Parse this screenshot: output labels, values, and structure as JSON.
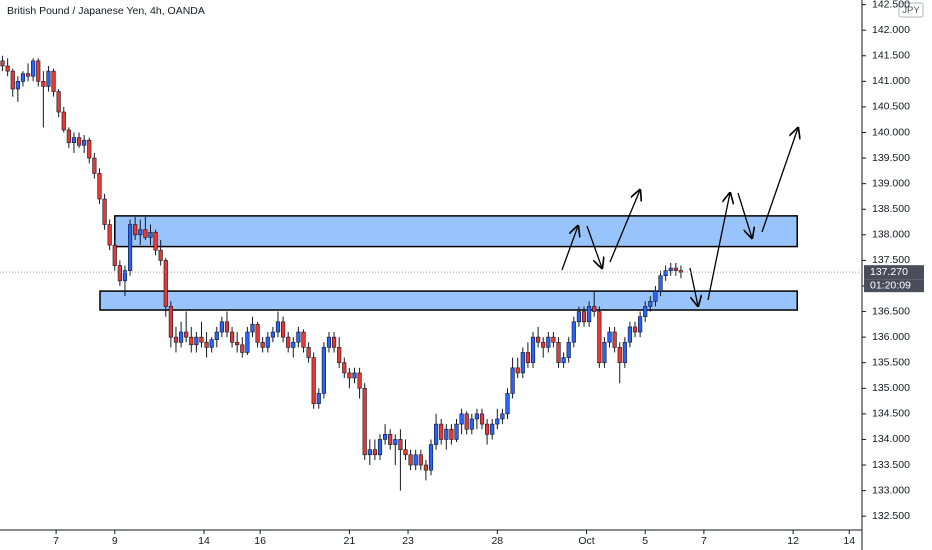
{
  "chart_data": {
    "type": "candlestick",
    "title": "British Pound / Japanese Yen, 4h, OANDA",
    "currency": "JPY",
    "up_color": "#2962ff",
    "down_color": "#e53935",
    "zone_color": "#99c4fb",
    "xlim": [
      0,
      169
    ],
    "ylim": [
      132.23,
      142.59
    ],
    "xticks": [
      {
        "value": 11,
        "label": "7"
      },
      {
        "value": 22.5,
        "label": "9"
      },
      {
        "value": 40,
        "label": "14"
      },
      {
        "value": 51,
        "label": "16"
      },
      {
        "value": 68.5,
        "label": "21"
      },
      {
        "value": 80,
        "label": "23"
      },
      {
        "value": 97.5,
        "label": "28"
      },
      {
        "value": 115,
        "label": "Oct"
      },
      {
        "value": 126.5,
        "label": "5"
      },
      {
        "value": 138,
        "label": "7"
      },
      {
        "value": 155.5,
        "label": "12"
      },
      {
        "value": 166.5,
        "label": "14"
      }
    ],
    "yticks": [
      {
        "value": 132.5,
        "label": "132.500"
      },
      {
        "value": 133,
        "label": "133.000"
      },
      {
        "value": 133.5,
        "label": "133.500"
      },
      {
        "value": 134,
        "label": "134.000"
      },
      {
        "value": 134.5,
        "label": "134.500"
      },
      {
        "value": 135,
        "label": "135.000"
      },
      {
        "value": 135.5,
        "label": "135.500"
      },
      {
        "value": 136,
        "label": "136.000"
      },
      {
        "value": 136.5,
        "label": "136.500"
      },
      {
        "value": 137,
        "label": "137.000"
      },
      {
        "value": 137.5,
        "label": "137.500"
      },
      {
        "value": 138,
        "label": "138.000"
      },
      {
        "value": 138.5,
        "label": "138.500"
      },
      {
        "value": 139,
        "label": "139.000"
      },
      {
        "value": 139.5,
        "label": "139.500"
      },
      {
        "value": 140,
        "label": "140.000"
      },
      {
        "value": 140.5,
        "label": "140.500"
      },
      {
        "value": 141,
        "label": "141.000"
      },
      {
        "value": 141.5,
        "label": "141.500"
      },
      {
        "value": 142,
        "label": "142.000"
      },
      {
        "value": 142.5,
        "label": "142.500"
      }
    ],
    "last_price": {
      "value": 137.27,
      "label": "137.270"
    },
    "countdown": "01:20:09",
    "zones": [
      {
        "top": 138.37,
        "bottom": 137.77,
        "from": 22.5,
        "to": 156.3
      },
      {
        "top": 136.9,
        "bottom": 136.53,
        "from": 19.6,
        "to": 156.3
      }
    ],
    "ohlc": [
      [
        141.4,
        141.5,
        141.2,
        141.3
      ],
      [
        141.3,
        141.45,
        141.1,
        141.2
      ],
      [
        141.2,
        141.25,
        140.7,
        140.85
      ],
      [
        140.85,
        141.1,
        140.6,
        141.0
      ],
      [
        141.0,
        141.2,
        140.9,
        141.15
      ],
      [
        141.15,
        141.35,
        141.0,
        141.1
      ],
      [
        141.1,
        141.45,
        141.0,
        141.4
      ],
      [
        141.4,
        141.45,
        140.9,
        141.0
      ],
      [
        141.0,
        141.2,
        140.1,
        140.9
      ],
      [
        140.9,
        141.3,
        140.8,
        141.2
      ],
      [
        141.2,
        141.25,
        140.7,
        140.8
      ],
      [
        140.8,
        140.85,
        140.3,
        140.4
      ],
      [
        140.4,
        140.5,
        140.0,
        140.05
      ],
      [
        140.05,
        140.1,
        139.7,
        139.8
      ],
      [
        139.8,
        140.0,
        139.6,
        139.9
      ],
      [
        139.9,
        140.0,
        139.7,
        139.75
      ],
      [
        139.75,
        139.95,
        139.6,
        139.85
      ],
      [
        139.85,
        139.9,
        139.4,
        139.5
      ],
      [
        139.5,
        139.6,
        139.1,
        139.2
      ],
      [
        139.2,
        139.3,
        138.6,
        138.7
      ],
      [
        138.7,
        138.8,
        138.1,
        138.2
      ],
      [
        138.2,
        138.3,
        137.7,
        137.8
      ],
      [
        137.8,
        137.9,
        137.3,
        137.4
      ],
      [
        137.4,
        137.5,
        137.0,
        137.1
      ],
      [
        137.1,
        137.4,
        136.8,
        137.3
      ],
      [
        137.3,
        138.3,
        137.2,
        138.2
      ],
      [
        138.2,
        138.35,
        137.9,
        138.0
      ],
      [
        138.0,
        138.3,
        137.8,
        138.1
      ],
      [
        138.1,
        138.35,
        137.9,
        137.95
      ],
      [
        137.95,
        138.2,
        137.8,
        138.05
      ],
      [
        138.05,
        138.1,
        137.6,
        137.7
      ],
      [
        137.7,
        137.9,
        137.4,
        137.5
      ],
      [
        137.5,
        137.55,
        136.4,
        136.6
      ],
      [
        136.6,
        136.7,
        135.8,
        136.0
      ],
      [
        136.0,
        136.2,
        135.7,
        135.9
      ],
      [
        135.9,
        136.3,
        135.8,
        136.1
      ],
      [
        136.1,
        136.5,
        135.9,
        136.0
      ],
      [
        136.0,
        136.2,
        135.7,
        135.85
      ],
      [
        135.85,
        136.1,
        135.7,
        136.0
      ],
      [
        136.0,
        136.3,
        135.8,
        135.9
      ],
      [
        135.9,
        136.1,
        135.6,
        135.8
      ],
      [
        135.8,
        136.0,
        135.7,
        135.95
      ],
      [
        135.95,
        136.2,
        135.8,
        136.1
      ],
      [
        136.1,
        136.4,
        136.0,
        136.3
      ],
      [
        136.3,
        136.5,
        136.0,
        136.1
      ],
      [
        136.1,
        136.2,
        135.8,
        135.9
      ],
      [
        135.9,
        136.1,
        135.7,
        135.85
      ],
      [
        135.85,
        136.0,
        135.6,
        135.7
      ],
      [
        135.7,
        136.2,
        135.65,
        136.1
      ],
      [
        136.1,
        136.4,
        136.0,
        136.25
      ],
      [
        136.25,
        136.3,
        135.8,
        135.9
      ],
      [
        135.9,
        136.0,
        135.7,
        135.8
      ],
      [
        135.8,
        136.1,
        135.7,
        136.0
      ],
      [
        136.0,
        136.2,
        135.9,
        136.1
      ],
      [
        136.1,
        136.5,
        136.0,
        136.3
      ],
      [
        136.3,
        136.4,
        135.9,
        136.0
      ],
      [
        136.0,
        136.1,
        135.7,
        135.8
      ],
      [
        135.8,
        136.0,
        135.6,
        135.9
      ],
      [
        135.9,
        136.2,
        135.8,
        136.1
      ],
      [
        136.1,
        136.15,
        135.7,
        135.8
      ],
      [
        135.8,
        135.9,
        135.5,
        135.6
      ],
      [
        135.6,
        135.7,
        134.6,
        134.7
      ],
      [
        134.7,
        135.0,
        134.6,
        134.9
      ],
      [
        134.9,
        135.9,
        134.8,
        135.8
      ],
      [
        135.8,
        136.1,
        135.7,
        136.0
      ],
      [
        136.0,
        136.1,
        135.7,
        135.8
      ],
      [
        135.8,
        136.0,
        135.4,
        135.5
      ],
      [
        135.5,
        135.6,
        135.2,
        135.3
      ],
      [
        135.3,
        135.4,
        135.0,
        135.2
      ],
      [
        135.2,
        135.4,
        135.1,
        135.3
      ],
      [
        135.3,
        135.4,
        134.8,
        135.0
      ],
      [
        135.0,
        135.1,
        133.6,
        133.7
      ],
      [
        133.7,
        134.0,
        133.5,
        133.8
      ],
      [
        133.8,
        134.0,
        133.6,
        133.7
      ],
      [
        133.7,
        134.1,
        133.6,
        134.0
      ],
      [
        134.0,
        134.3,
        133.9,
        134.1
      ],
      [
        134.1,
        134.2,
        133.8,
        133.9
      ],
      [
        133.9,
        134.1,
        133.5,
        134.0
      ],
      [
        134.0,
        134.2,
        133.0,
        133.8
      ],
      [
        133.8,
        134.0,
        133.6,
        133.7
      ],
      [
        133.7,
        133.8,
        133.4,
        133.5
      ],
      [
        133.5,
        133.8,
        133.4,
        133.7
      ],
      [
        133.7,
        133.8,
        133.4,
        133.5
      ],
      [
        133.5,
        133.6,
        133.2,
        133.4
      ],
      [
        133.4,
        134.0,
        133.3,
        133.9
      ],
      [
        133.9,
        134.5,
        133.8,
        134.3
      ],
      [
        134.3,
        134.4,
        133.9,
        134.0
      ],
      [
        134.0,
        134.3,
        133.8,
        134.2
      ],
      [
        134.2,
        134.3,
        133.9,
        134.0
      ],
      [
        134.0,
        134.4,
        133.95,
        134.3
      ],
      [
        134.3,
        134.6,
        134.1,
        134.5
      ],
      [
        134.5,
        134.55,
        134.1,
        134.2
      ],
      [
        134.2,
        134.5,
        134.1,
        134.4
      ],
      [
        134.4,
        134.6,
        134.2,
        134.5
      ],
      [
        134.5,
        134.6,
        134.2,
        134.3
      ],
      [
        134.3,
        134.4,
        133.9,
        134.1
      ],
      [
        134.1,
        134.4,
        134.0,
        134.3
      ],
      [
        134.3,
        134.6,
        134.2,
        134.4
      ],
      [
        134.4,
        134.6,
        134.3,
        134.5
      ],
      [
        134.5,
        135.0,
        134.4,
        134.9
      ],
      [
        134.9,
        135.6,
        134.8,
        135.4
      ],
      [
        135.4,
        135.6,
        135.2,
        135.3
      ],
      [
        135.3,
        135.8,
        135.2,
        135.7
      ],
      [
        135.7,
        135.9,
        135.4,
        135.5
      ],
      [
        135.5,
        136.1,
        135.4,
        136.0
      ],
      [
        136.0,
        136.2,
        135.8,
        135.9
      ],
      [
        135.9,
        136.0,
        135.6,
        135.8
      ],
      [
        135.8,
        136.1,
        135.7,
        136.0
      ],
      [
        136.0,
        136.1,
        135.8,
        135.9
      ],
      [
        135.9,
        136.0,
        135.4,
        135.5
      ],
      [
        135.5,
        135.7,
        135.4,
        135.6
      ],
      [
        135.6,
        136.0,
        135.5,
        135.9
      ],
      [
        135.9,
        136.4,
        135.8,
        136.3
      ],
      [
        136.3,
        136.6,
        136.2,
        136.5
      ],
      [
        136.5,
        136.6,
        136.2,
        136.3
      ],
      [
        136.3,
        136.7,
        136.2,
        136.6
      ],
      [
        136.6,
        136.9,
        136.4,
        136.5
      ],
      [
        136.5,
        136.6,
        135.4,
        135.5
      ],
      [
        135.5,
        136.0,
        135.4,
        135.9
      ],
      [
        135.9,
        136.2,
        135.8,
        136.1
      ],
      [
        136.1,
        136.2,
        135.7,
        135.8
      ],
      [
        135.8,
        135.9,
        135.1,
        135.5
      ],
      [
        135.5,
        136.0,
        135.4,
        135.9
      ],
      [
        135.9,
        136.3,
        135.8,
        136.2
      ],
      [
        136.2,
        136.3,
        136.0,
        136.1
      ],
      [
        136.1,
        136.5,
        136.0,
        136.4
      ],
      [
        136.4,
        136.7,
        136.3,
        136.6
      ],
      [
        136.6,
        136.8,
        136.5,
        136.7
      ],
      [
        136.7,
        137.0,
        136.6,
        136.9
      ],
      [
        136.9,
        137.3,
        136.8,
        137.2
      ],
      [
        137.2,
        137.4,
        137.1,
        137.3
      ],
      [
        137.3,
        137.45,
        137.2,
        137.35
      ],
      [
        137.35,
        137.45,
        137.2,
        137.3
      ],
      [
        137.3,
        137.4,
        137.15,
        137.27
      ]
    ]
  }
}
